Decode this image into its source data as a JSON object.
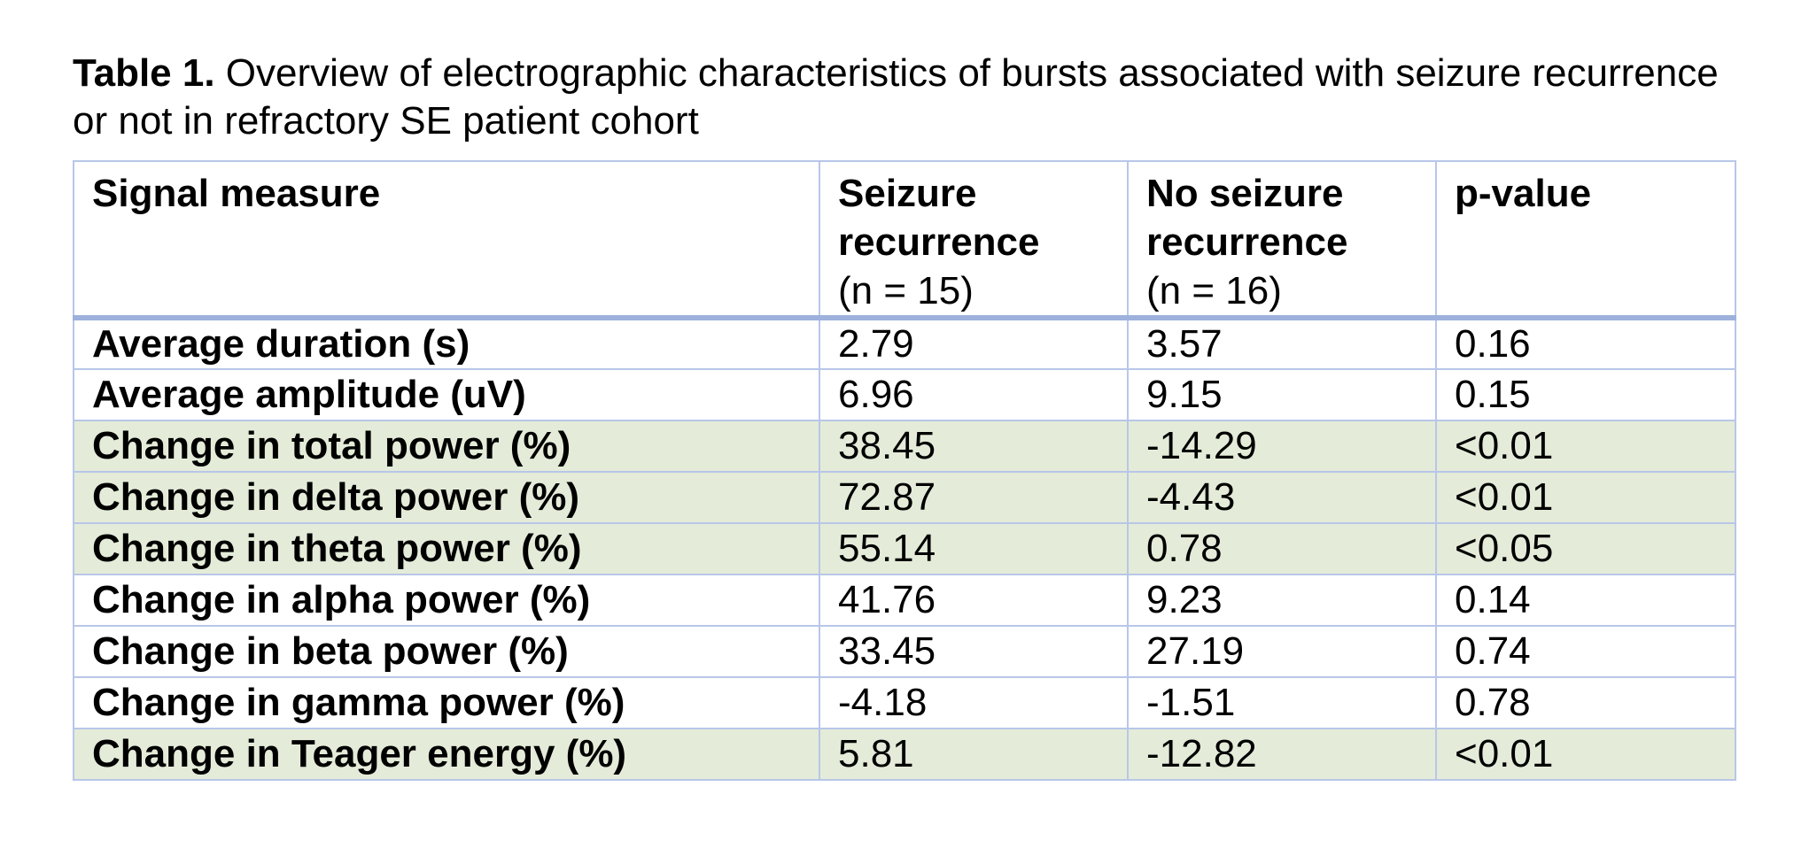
{
  "title": {
    "prefix": "Table 1.",
    "text": " Overview of electrographic characteristics of bursts associated with seizure recurrence or not in refractory SE patient cohort"
  },
  "table": {
    "columns": [
      {
        "label": "Signal measure",
        "sub": ""
      },
      {
        "label": "Seizure recurrence",
        "sub": "(n = 15)"
      },
      {
        "label": "No seizure recurrence",
        "sub": "(n = 16)"
      },
      {
        "label": "p-value",
        "sub": ""
      }
    ],
    "rows": [
      {
        "measure": "Average duration (s)",
        "seizure_recurrence": "2.79",
        "no_seizure_recurrence": "3.57",
        "p_value": "0.16",
        "highlight": false
      },
      {
        "measure": "Average amplitude (uV)",
        "seizure_recurrence": "6.96",
        "no_seizure_recurrence": "9.15",
        "p_value": "0.15",
        "highlight": false
      },
      {
        "measure": "Change in total power (%)",
        "seizure_recurrence": "38.45",
        "no_seizure_recurrence": "-14.29",
        "p_value": "<0.01",
        "highlight": true
      },
      {
        "measure": "Change in delta power (%)",
        "seizure_recurrence": "72.87",
        "no_seizure_recurrence": "-4.43",
        "p_value": "<0.01",
        "highlight": true
      },
      {
        "measure": "Change in theta power (%)",
        "seizure_recurrence": "55.14",
        "no_seizure_recurrence": "0.78",
        "p_value": "<0.05",
        "highlight": true
      },
      {
        "measure": "Change in alpha power (%)",
        "seizure_recurrence": "41.76",
        "no_seizure_recurrence": "9.23",
        "p_value": "0.14",
        "highlight": false
      },
      {
        "measure": "Change in beta power (%)",
        "seizure_recurrence": "33.45",
        "no_seizure_recurrence": "27.19",
        "p_value": "0.74",
        "highlight": false
      },
      {
        "measure": "Change in gamma power (%)",
        "seizure_recurrence": "-4.18",
        "no_seizure_recurrence": "-1.51",
        "p_value": "0.78",
        "highlight": false
      },
      {
        "measure": "Change in Teager energy (%)",
        "seizure_recurrence": "5.81",
        "no_seizure_recurrence": "-12.82",
        "p_value": "<0.01",
        "highlight": true
      }
    ],
    "colors": {
      "border_thin": "#b8c6e8",
      "border_thick": "#9db1dc",
      "highlight_row_bg": "#e4ecd9",
      "text": "#000000",
      "background": "#ffffff"
    }
  }
}
